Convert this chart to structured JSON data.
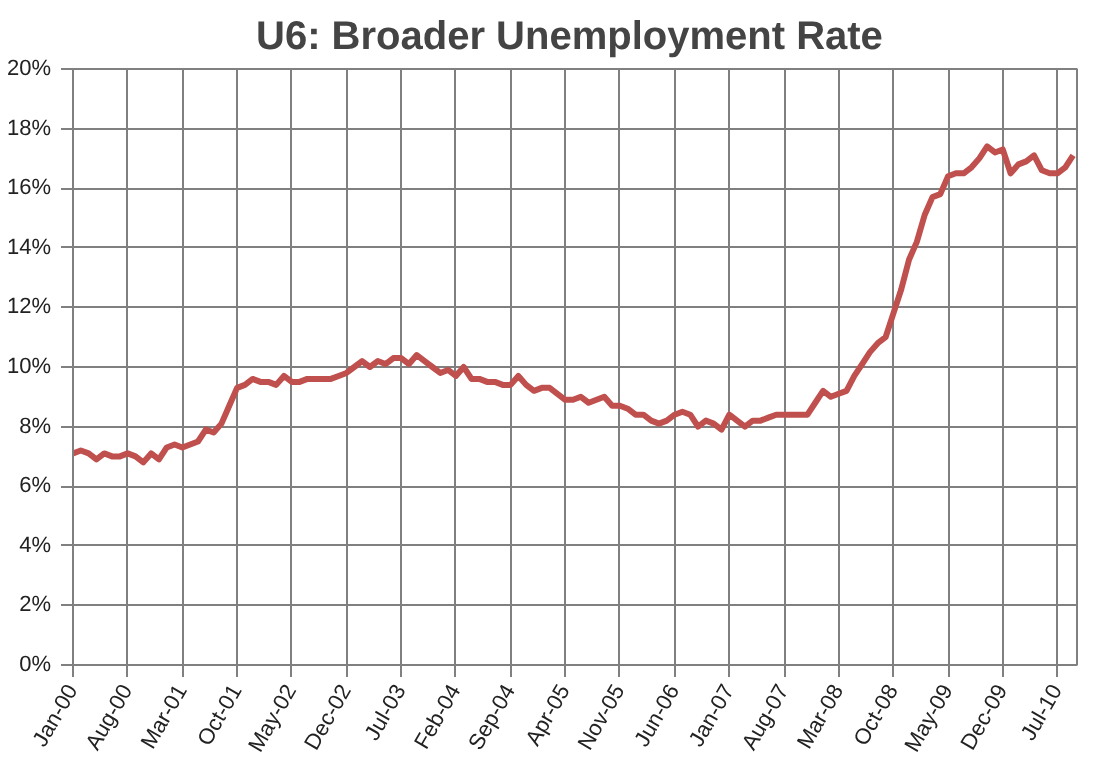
{
  "chart_data": {
    "type": "line",
    "title": "U6:  Broader Unemployment Rate",
    "categories": [
      "Jan-00",
      null,
      null,
      null,
      null,
      null,
      null,
      "Aug-00",
      null,
      null,
      null,
      null,
      null,
      null,
      "Mar-01",
      null,
      null,
      null,
      null,
      null,
      null,
      "Oct-01",
      null,
      null,
      null,
      null,
      null,
      null,
      "May-02",
      null,
      null,
      null,
      null,
      null,
      null,
      "Dec-02",
      null,
      null,
      null,
      null,
      null,
      null,
      "Jul-03",
      null,
      null,
      null,
      null,
      null,
      null,
      "Feb-04",
      null,
      null,
      null,
      null,
      null,
      null,
      "Sep-04",
      null,
      null,
      null,
      null,
      null,
      null,
      "Apr-05",
      null,
      null,
      null,
      null,
      null,
      null,
      "Nov-05",
      null,
      null,
      null,
      null,
      null,
      null,
      "Jun-06",
      null,
      null,
      null,
      null,
      null,
      null,
      "Jan-07",
      null,
      null,
      null,
      null,
      null,
      null,
      "Aug-07",
      null,
      null,
      null,
      null,
      null,
      null,
      "Mar-08",
      null,
      null,
      null,
      null,
      null,
      null,
      "Oct-08",
      null,
      null,
      null,
      null,
      null,
      null,
      "May-09",
      null,
      null,
      null,
      null,
      null,
      null,
      "Dec-09",
      null,
      null,
      null,
      null,
      null,
      null,
      "Jul-10",
      null,
      null
    ],
    "series": [
      {
        "color": "#c0504d",
        "values": [
          7.1,
          7.2,
          7.1,
          6.9,
          7.1,
          7.0,
          7.0,
          7.1,
          7.0,
          6.8,
          7.1,
          6.9,
          7.3,
          7.4,
          7.3,
          7.4,
          7.5,
          7.9,
          7.8,
          8.1,
          8.7,
          9.3,
          9.4,
          9.6,
          9.5,
          9.5,
          9.4,
          9.7,
          9.5,
          9.5,
          9.6,
          9.6,
          9.6,
          9.6,
          9.7,
          9.8,
          10.0,
          10.2,
          10.0,
          10.2,
          10.1,
          10.3,
          10.3,
          10.1,
          10.4,
          10.2,
          10.0,
          9.8,
          9.9,
          9.7,
          10.0,
          9.6,
          9.6,
          9.5,
          9.5,
          9.4,
          9.4,
          9.7,
          9.4,
          9.2,
          9.3,
          9.3,
          9.1,
          8.9,
          8.9,
          9.0,
          8.8,
          8.9,
          9.0,
          8.7,
          8.7,
          8.6,
          8.4,
          8.4,
          8.2,
          8.1,
          8.2,
          8.4,
          8.5,
          8.4,
          8.0,
          8.2,
          8.1,
          7.9,
          8.4,
          8.2,
          8.0,
          8.2,
          8.2,
          8.3,
          8.4,
          8.4,
          8.4,
          8.4,
          8.4,
          8.8,
          9.2,
          9.0,
          9.1,
          9.2,
          9.7,
          10.1,
          10.5,
          10.8,
          11.0,
          11.8,
          12.6,
          13.6,
          14.2,
          15.1,
          15.7,
          15.8,
          16.4,
          16.5,
          16.5,
          16.7,
          17.0,
          17.4,
          17.2,
          17.3,
          16.5,
          16.8,
          16.9,
          17.1,
          16.6,
          16.5,
          16.5,
          16.7,
          17.1
        ]
      }
    ],
    "ylim": [
      0,
      20
    ],
    "yticks": [
      {
        "value": 0,
        "label": "0%"
      },
      {
        "value": 2,
        "label": "2%"
      },
      {
        "value": 4,
        "label": "4%"
      },
      {
        "value": 6,
        "label": "6%"
      },
      {
        "value": 8,
        "label": "8%"
      },
      {
        "value": 10,
        "label": "10%"
      },
      {
        "value": 12,
        "label": "12%"
      },
      {
        "value": 14,
        "label": "14%"
      },
      {
        "value": 16,
        "label": "16%"
      },
      {
        "value": 18,
        "label": "18%"
      },
      {
        "value": 20,
        "label": "20%"
      }
    ],
    "grid": true,
    "marker": "none",
    "line_style": "solid"
  }
}
